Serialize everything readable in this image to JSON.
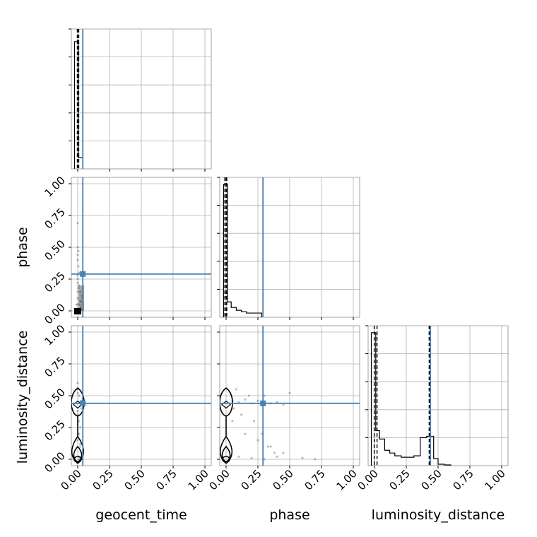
{
  "chart_data": {
    "type": "corner",
    "parameters": [
      "geocent_time",
      "phase",
      "luminosity_distance"
    ],
    "axis_range": [
      -0.05,
      1.05
    ],
    "tick_labels": [
      "0.00",
      "0.25",
      "0.50",
      "0.75",
      "1.00"
    ],
    "tick_values": [
      0,
      0.25,
      0.5,
      0.75,
      1.0
    ],
    "grid": true,
    "colors": {
      "truth": "#4682b4",
      "hist": "#000000",
      "points": "#000000"
    },
    "truths": {
      "geocent_time": 0.04,
      "phase": 0.29,
      "luminosity_distance": 0.44
    },
    "histograms": {
      "geocent_time": {
        "edges": [
          -0.025,
          -0.002,
          0.004,
          0.035,
          0.04
        ],
        "heights": [
          0.91,
          0.92,
          0.08,
          0.08
        ],
        "quantiles": [
          -0.003,
          0.0,
          0.008
        ]
      },
      "phase": {
        "edges": [
          -0.02,
          0.01,
          0.04,
          0.08,
          0.12,
          0.16,
          0.2,
          0.24,
          0.28
        ],
        "heights": [
          0.95,
          0.11,
          0.07,
          0.05,
          0.04,
          0.03,
          0.03,
          0.03
        ],
        "quantiles": [
          -0.01,
          0.0,
          0.005
        ]
      },
      "luminosity_distance": {
        "edges": [
          -0.025,
          0.01,
          0.04,
          0.08,
          0.12,
          0.16,
          0.21,
          0.26,
          0.31,
          0.36,
          0.41,
          0.465,
          0.5,
          0.55,
          0.6
        ],
        "heights": [
          0.95,
          0.25,
          0.19,
          0.11,
          0.09,
          0.07,
          0.06,
          0.06,
          0.07,
          0.2,
          0.21,
          0.05,
          0.01,
          0.005
        ],
        "quantiles": [
          -0.002,
          0.02,
          0.43,
          0.435
        ]
      }
    },
    "scatter": {
      "geocent_time_phase": {
        "x": [
          0.0,
          0.0,
          0.005,
          0.0,
          0.0,
          0.005,
          0.01,
          0.0,
          0.0,
          0.0,
          0.01,
          0.02,
          0.03,
          0.035,
          0.03,
          0.0,
          -0.01,
          0.015,
          0.025,
          0.005,
          0.0,
          0.0,
          0.0,
          0.02,
          0.04,
          0.03
        ],
        "y": [
          0.69,
          0.5,
          0.47,
          0.44,
          0.4,
          0.35,
          0.3,
          0.28,
          0.25,
          0.22,
          0.2,
          0.15,
          0.12,
          0.1,
          0.07,
          0.15,
          0.05,
          0.05,
          0.03,
          0.18,
          0.1,
          0.05,
          0.02,
          0.08,
          0.05,
          0.01
        ],
        "dense": {
          "x": 0.0,
          "y": 0.0
        }
      },
      "geocent_time_luminosity_distance": {
        "x": [
          0.0,
          0.0,
          0.01,
          0.02,
          0.03,
          0.0,
          0.01,
          0.02,
          0.01,
          0.0,
          0.02,
          0.03,
          0.01,
          0.0,
          0.02,
          0.0,
          0.03,
          0.04,
          0.01,
          0.02
        ],
        "y": [
          0.6,
          0.55,
          0.5,
          0.45,
          0.4,
          0.35,
          0.3,
          0.25,
          0.2,
          0.15,
          0.1,
          0.05,
          0.0,
          0.52,
          0.42,
          0.38,
          0.46,
          0.48,
          0.02,
          0.12
        ],
        "contour": {
          "x": 0.0,
          "levels": 4
        }
      },
      "phase_luminosity_distance": {
        "x": [
          0.05,
          0.1,
          0.15,
          0.2,
          0.25,
          0.3,
          0.35,
          0.4,
          0.45,
          0.5,
          0.06,
          0.12,
          0.18,
          0.22,
          0.28,
          0.33,
          0.38,
          0.1,
          0.2,
          0.3,
          0.4,
          0.6,
          0.7,
          0.05,
          0.15,
          0.25,
          0.35,
          0.45,
          0.08,
          0.3
        ],
        "y": [
          0.46,
          0.45,
          0.47,
          0.44,
          0.46,
          0.45,
          0.44,
          0.45,
          0.43,
          0.52,
          0.4,
          0.35,
          0.5,
          0.3,
          0.2,
          0.1,
          0.05,
          0.02,
          0.01,
          0.0,
          0.02,
          0.01,
          0.0,
          0.3,
          0.2,
          0.15,
          0.1,
          0.05,
          0.55,
          0.5
        ],
        "contour": {
          "x": 0.0,
          "levels": 4
        }
      }
    }
  }
}
